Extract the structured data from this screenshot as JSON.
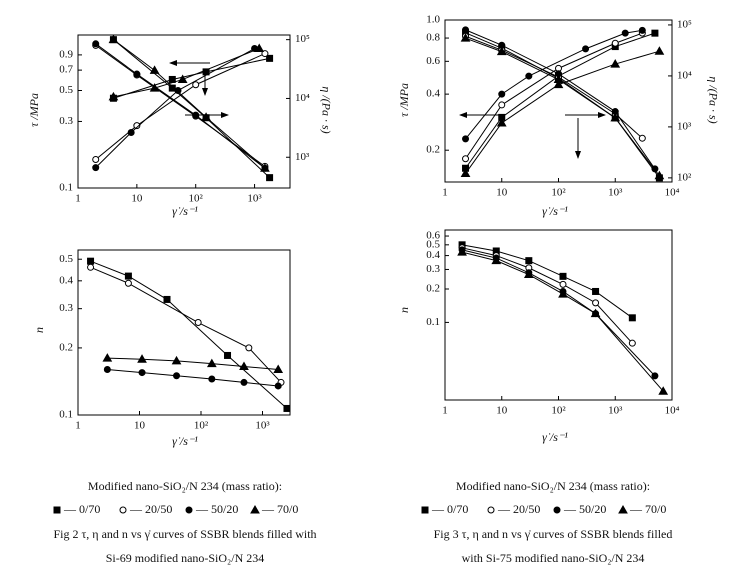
{
  "chart_data": [
    {
      "type": "line",
      "log": true,
      "xlabel": "γ̇ /s⁻¹",
      "ylabel": "τ /MPa",
      "y2label": "η /(Pa · s)",
      "xlim": [
        1,
        4000
      ],
      "ylim": [
        0.1,
        1.25
      ],
      "y2lim": [
        300,
        120000
      ],
      "xticks": [
        1,
        10,
        {
          "value": 100,
          "label": "10²"
        },
        {
          "value": 1000,
          "label": "10³"
        }
      ],
      "yticks": [
        0.1,
        0.3,
        0.5,
        0.7,
        0.9
      ],
      "y2ticks": [
        {
          "value": 1000,
          "label": "10³"
        },
        {
          "value": 10000,
          "label": "10⁴"
        },
        {
          "value": 100000,
          "label": "10⁵"
        }
      ],
      "series": [
        {
          "marker": "square",
          "color": "#000",
          "x": [
            4,
            40,
            150,
            1800
          ],
          "values": [
            0.44,
            0.6,
            0.68,
            0.85
          ]
        },
        {
          "marker": "circle-open",
          "color": "#000",
          "x": [
            2,
            10,
            100,
            1500
          ],
          "values": [
            0.16,
            0.28,
            0.55,
            0.92
          ]
        },
        {
          "marker": "circle",
          "color": "#000",
          "x": [
            2,
            8,
            50,
            1000
          ],
          "values": [
            0.14,
            0.25,
            0.5,
            1.0
          ]
        },
        {
          "marker": "triangle",
          "color": "#000",
          "x": [
            4,
            20,
            60,
            1200
          ],
          "values": [
            0.45,
            0.52,
            0.6,
            1.0
          ]
        },
        {
          "marker": "square",
          "color": "#000",
          "axis": "y2",
          "x": [
            4,
            40,
            150,
            1800
          ],
          "values": [
            100000,
            15000,
            4700,
            450
          ]
        },
        {
          "marker": "circle-open",
          "color": "#000",
          "axis": "y2",
          "x": [
            2,
            10,
            100,
            1500
          ],
          "values": [
            80000,
            25000,
            5000,
            700
          ]
        },
        {
          "marker": "circle",
          "color": "#000",
          "axis": "y2",
          "x": [
            2,
            10,
            100,
            1500
          ],
          "values": [
            85000,
            26000,
            5200,
            650
          ]
        },
        {
          "marker": "triangle",
          "color": "#000",
          "axis": "y2",
          "x": [
            4,
            20,
            150,
            1500
          ],
          "values": [
            100000,
            30000,
            4800,
            650
          ]
        }
      ]
    },
    {
      "type": "line",
      "log": true,
      "xlabel": "γ̇ /s⁻¹",
      "ylabel": "n",
      "xlim": [
        1,
        2800
      ],
      "ylim": [
        0.1,
        0.55
      ],
      "xticks": [
        1,
        10,
        {
          "value": 100,
          "label": "10²"
        },
        {
          "value": 1000,
          "label": "10³"
        }
      ],
      "yticks": [
        0.1,
        0.2,
        0.3,
        0.4,
        0.5
      ],
      "series": [
        {
          "marker": "square",
          "color": "#000",
          "x": [
            1.6,
            6.6,
            28,
            270,
            2500
          ],
          "values": [
            0.49,
            0.42,
            0.33,
            0.185,
            0.107
          ]
        },
        {
          "marker": "circle-open",
          "color": "#000",
          "x": [
            1.6,
            6.6,
            90,
            600,
            2000
          ],
          "values": [
            0.46,
            0.39,
            0.26,
            0.2,
            0.14
          ]
        },
        {
          "marker": "circle",
          "color": "#000",
          "x": [
            3,
            11,
            40,
            150,
            500,
            1800
          ],
          "values": [
            0.16,
            0.155,
            0.15,
            0.145,
            0.14,
            0.135
          ]
        },
        {
          "marker": "triangle",
          "color": "#000",
          "x": [
            3,
            11,
            40,
            150,
            500,
            1800
          ],
          "values": [
            0.18,
            0.178,
            0.175,
            0.17,
            0.165,
            0.16
          ]
        }
      ]
    },
    {
      "type": "line",
      "log": true,
      "xlabel": "γ̇ /s⁻¹",
      "ylabel": "τ /MPa",
      "y2label": "η /(Pa · s)",
      "xlim": [
        1,
        10000
      ],
      "ylim": [
        0.135,
        1.0
      ],
      "y2lim": [
        83,
        125000
      ],
      "xticks": [
        1,
        10,
        {
          "value": 100,
          "label": "10²"
        },
        {
          "value": 1000,
          "label": "10³"
        },
        {
          "value": 10000,
          "label": "10⁴"
        }
      ],
      "yticks": [
        0.2,
        0.4,
        0.6,
        0.8,
        {
          "value": 1,
          "label": "1.0"
        }
      ],
      "y2ticks": [
        {
          "value": 100,
          "label": "10²"
        },
        {
          "value": 1000,
          "label": "10³"
        },
        {
          "value": 10000,
          "label": "10⁴"
        },
        {
          "value": 100000,
          "label": "10⁵"
        }
      ],
      "series": [
        {
          "marker": "square",
          "color": "#000",
          "x": [
            2.3,
            10,
            100,
            1000,
            5000
          ],
          "values": [
            0.16,
            0.3,
            0.5,
            0.72,
            0.85
          ]
        },
        {
          "marker": "circle-open",
          "color": "#000",
          "x": [
            2.3,
            10,
            100,
            1000,
            3000
          ],
          "values": [
            0.18,
            0.35,
            0.55,
            0.75,
            0.85
          ]
        },
        {
          "marker": "circle",
          "color": "#000",
          "x": [
            2.3,
            10,
            30,
            300,
            1500,
            3000
          ],
          "values": [
            0.23,
            0.4,
            0.5,
            0.7,
            0.85,
            0.88
          ]
        },
        {
          "marker": "triangle",
          "color": "#000",
          "x": [
            2.3,
            10,
            100,
            1000,
            6000
          ],
          "values": [
            0.15,
            0.28,
            0.45,
            0.58,
            0.68
          ]
        },
        {
          "marker": "square",
          "color": "#000",
          "axis": "y2",
          "x": [
            2.3,
            10,
            100,
            1000,
            6000
          ],
          "values": [
            70000,
            35000,
            9000,
            1500,
            100
          ]
        },
        {
          "marker": "circle-open",
          "color": "#000",
          "axis": "y2",
          "x": [
            2.3,
            10,
            100,
            1000,
            3000
          ],
          "values": [
            60000,
            32000,
            9500,
            1800,
            600
          ]
        },
        {
          "marker": "circle",
          "color": "#000",
          "axis": "y2",
          "x": [
            2.3,
            10,
            100,
            1000,
            5000
          ],
          "values": [
            80000,
            40000,
            11000,
            2000,
            150
          ]
        },
        {
          "marker": "triangle",
          "color": "#000",
          "axis": "y2",
          "x": [
            2.3,
            10,
            100,
            1000,
            6000
          ],
          "values": [
            55000,
            30000,
            8500,
            1500,
            110
          ]
        }
      ]
    },
    {
      "type": "line",
      "log": true,
      "xlabel": "γ̇ /s⁻¹",
      "ylabel": "n",
      "xlim": [
        1,
        10000
      ],
      "ylim": [
        0.02,
        0.68
      ],
      "xticks": [
        1,
        10,
        {
          "value": 100,
          "label": "10²"
        },
        {
          "value": 1000,
          "label": "10³"
        },
        {
          "value": 10000,
          "label": "10⁴"
        }
      ],
      "yticks": [
        0.1,
        0.2,
        0.3,
        0.4,
        0.5,
        0.6
      ],
      "series": [
        {
          "marker": "square",
          "color": "#000",
          "x": [
            2,
            8,
            30,
            120,
            450,
            2000
          ],
          "values": [
            0.5,
            0.44,
            0.36,
            0.26,
            0.19,
            0.11
          ]
        },
        {
          "marker": "circle-open",
          "color": "#000",
          "x": [
            2,
            8,
            30,
            120,
            450,
            2000
          ],
          "values": [
            0.47,
            0.4,
            0.31,
            0.22,
            0.15,
            0.065
          ]
        },
        {
          "marker": "circle",
          "color": "#000",
          "x": [
            2,
            8,
            30,
            120,
            450,
            5000
          ],
          "values": [
            0.45,
            0.38,
            0.28,
            0.19,
            0.12,
            0.033
          ]
        },
        {
          "marker": "triangle",
          "color": "#000",
          "x": [
            2,
            8,
            30,
            120,
            450,
            7000
          ],
          "values": [
            0.43,
            0.36,
            0.27,
            0.18,
            0.12,
            0.024
          ]
        }
      ]
    }
  ],
  "captions": [
    {
      "legend_title": "Modified nano-SiO₂/N 234 (mass ratio):",
      "legend": [
        {
          "marker": "square",
          "label": "— 0/70"
        },
        {
          "marker": "circle-open",
          "label": "— 20/50"
        },
        {
          "marker": "circle",
          "label": "— 50/20"
        },
        {
          "marker": "triangle",
          "label": "— 70/0"
        }
      ],
      "lines": [
        "Fig 2   τ, η and n vs γ̇ curves of SSBR blends filled with",
        "Si-69 modified nano-SiO₂/N 234"
      ]
    },
    {
      "legend_title": "Modified nano-SiO₂/N 234 (mass ratio):",
      "legend": [
        {
          "marker": "square",
          "label": "— 0/70"
        },
        {
          "marker": "circle-open",
          "label": "— 20/50"
        },
        {
          "marker": "circle",
          "label": "— 50/20"
        },
        {
          "marker": "triangle",
          "label": "— 70/0"
        }
      ],
      "lines": [
        "Fig 3   τ, η and n vs γ̇ curves of SSBR blends filled",
        "with Si-75 modified nano-SiO₂/N 234"
      ]
    }
  ]
}
